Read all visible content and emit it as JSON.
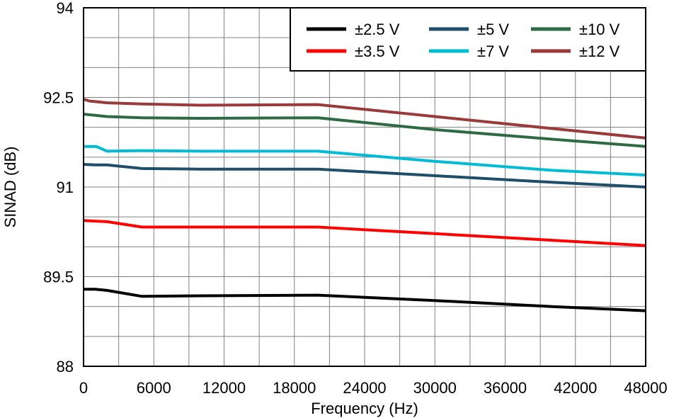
{
  "chart_data": {
    "type": "line",
    "title": "",
    "xlabel": "Frequency (Hz)",
    "ylabel": "SINAD (dB)",
    "xlim": [
      0,
      48000
    ],
    "ylim": [
      88,
      94
    ],
    "xticks": [
      0,
      6000,
      12000,
      18000,
      24000,
      30000,
      36000,
      42000,
      48000
    ],
    "xtick_labels": [
      "0",
      "6000",
      "12000",
      "18000",
      "24000",
      "30000",
      "36000",
      "42000",
      "48000"
    ],
    "yticks": [
      88,
      89.5,
      91,
      92.5,
      94
    ],
    "ytick_labels": [
      "88",
      "89.5",
      "91",
      "92.5",
      "94"
    ],
    "grid": true,
    "legend_position": "top-right",
    "series": [
      {
        "name": "±2.5 V",
        "color": "#000000",
        "x": [
          0,
          1000,
          2000,
          5000,
          10000,
          20000,
          30000,
          40000,
          48000
        ],
        "y": [
          89.29,
          89.29,
          89.27,
          89.17,
          89.18,
          89.19,
          89.1,
          89.0,
          88.93
        ]
      },
      {
        "name": "±3.5 V",
        "color": "#ff0000",
        "x": [
          0,
          1000,
          2000,
          5000,
          10000,
          20000,
          30000,
          40000,
          48000
        ],
        "y": [
          90.44,
          90.43,
          90.42,
          90.33,
          90.33,
          90.33,
          90.22,
          90.11,
          90.02
        ]
      },
      {
        "name": "±5 V",
        "color": "#1f4e6a",
        "x": [
          0,
          1000,
          2000,
          5000,
          10000,
          20000,
          30000,
          40000,
          48000
        ],
        "y": [
          91.38,
          91.37,
          91.37,
          91.31,
          91.3,
          91.3,
          91.19,
          91.08,
          91.0
        ]
      },
      {
        "name": "±7 V",
        "color": "#00bcd4",
        "x": [
          0,
          1000,
          1200,
          2000,
          5000,
          10000,
          20000,
          30000,
          40000,
          48000
        ],
        "y": [
          91.68,
          91.68,
          91.67,
          91.6,
          91.61,
          91.6,
          91.6,
          91.43,
          91.28,
          91.2
        ]
      },
      {
        "name": "±10 V",
        "color": "#2e6b45",
        "x": [
          0,
          1000,
          2000,
          5000,
          10000,
          20000,
          30000,
          40000,
          48000
        ],
        "y": [
          92.22,
          92.2,
          92.18,
          92.16,
          92.15,
          92.16,
          91.96,
          91.8,
          91.68
        ]
      },
      {
        "name": "±12 V",
        "color": "#9a3a3a",
        "x": [
          0,
          500,
          1000,
          2000,
          5000,
          10000,
          20000,
          30000,
          40000,
          48000
        ],
        "y": [
          92.47,
          92.44,
          92.43,
          92.41,
          92.39,
          92.37,
          92.38,
          92.18,
          91.98,
          91.82
        ]
      }
    ]
  }
}
